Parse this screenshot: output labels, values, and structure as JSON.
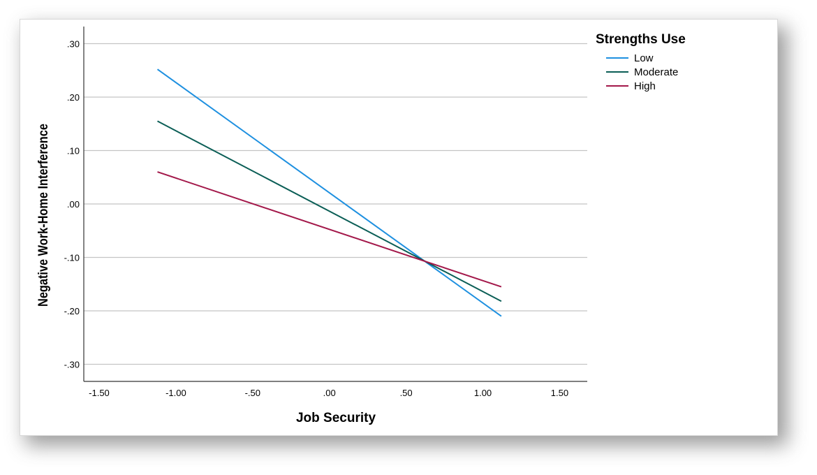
{
  "chart_data": {
    "type": "line",
    "xlabel": "Job Security",
    "ylabel": "Negative Work-Home Interference",
    "xlim": [
      -1.6,
      1.68
    ],
    "ylim": [
      -0.332,
      0.332
    ],
    "x_ticks": [
      -1.5,
      -1.0,
      -0.5,
      0.0,
      0.5,
      1.0,
      1.5
    ],
    "x_tick_labels": [
      "-1.50",
      "-1.00",
      "-.50",
      ".00",
      ".50",
      "1.00",
      "1.50"
    ],
    "y_ticks": [
      0.3,
      0.2,
      0.1,
      0.0,
      -0.1,
      -0.2,
      -0.3
    ],
    "y_tick_labels": [
      ".30",
      ".20",
      ".10",
      ".00",
      "-.10",
      "-.20",
      "-.30"
    ],
    "grid": "horizontal",
    "legend": {
      "title": "Strengths Use",
      "position": "right"
    },
    "series": [
      {
        "name": "Low",
        "color": "#1e90e0",
        "x": [
          -1.12,
          1.12
        ],
        "y": [
          0.252,
          -0.21
        ]
      },
      {
        "name": "Moderate",
        "color": "#0b5e56",
        "x": [
          -1.12,
          1.12
        ],
        "y": [
          0.155,
          -0.182
        ]
      },
      {
        "name": "High",
        "color": "#a3184a",
        "x": [
          -1.12,
          1.12
        ],
        "y": [
          0.06,
          -0.155
        ]
      }
    ]
  }
}
